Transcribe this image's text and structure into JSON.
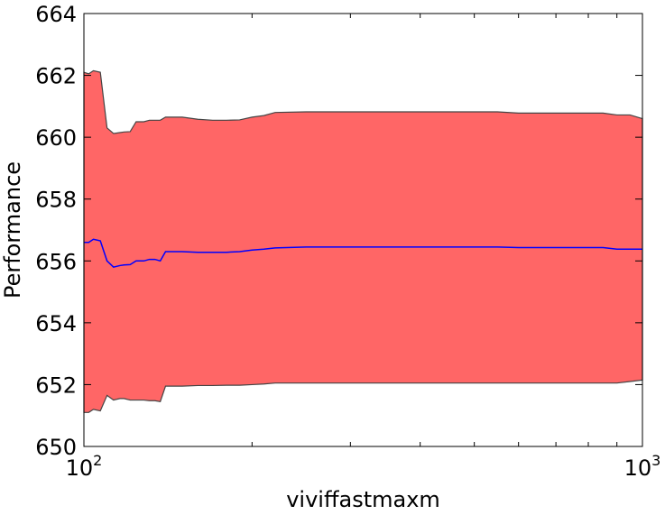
{
  "chart_data": {
    "type": "area",
    "xlabel": "viviffastmaxm",
    "ylabel": "Performance",
    "xscale": "log",
    "xlim": [
      100,
      1000
    ],
    "ylim": [
      650,
      664
    ],
    "grid": false,
    "x_ticks": [
      {
        "value": 100,
        "base": "10",
        "exp": "2"
      },
      {
        "value": 1000,
        "base": "10",
        "exp": "3"
      }
    ],
    "y_ticks": [
      "650",
      "652",
      "654",
      "656",
      "658",
      "660",
      "662",
      "664"
    ],
    "colors": {
      "band_fill": "#ff6666",
      "band_edge": "#444444",
      "mean_line": "#0000ff"
    },
    "series": [
      {
        "role": "mean",
        "x": [
          100,
          102,
          104,
          107,
          110,
          113,
          116,
          118,
          121,
          124,
          128,
          131,
          134,
          137,
          140,
          150,
          160,
          170,
          180,
          190,
          200,
          210,
          220,
          250,
          300,
          350,
          400,
          450,
          500,
          550,
          600,
          650,
          700,
          750,
          800,
          850,
          900,
          950,
          1000
        ],
        "y": [
          656.6,
          656.6,
          656.7,
          656.65,
          656.0,
          655.8,
          655.85,
          655.87,
          655.88,
          656.0,
          656.0,
          656.05,
          656.05,
          656.0,
          656.3,
          656.3,
          656.28,
          656.28,
          656.28,
          656.3,
          656.35,
          656.38,
          656.42,
          656.45,
          656.45,
          656.45,
          656.45,
          656.45,
          656.45,
          656.45,
          656.43,
          656.43,
          656.43,
          656.43,
          656.43,
          656.43,
          656.38,
          656.38,
          656.38
        ]
      },
      {
        "role": "upper",
        "x": [
          100,
          102,
          104,
          107,
          110,
          113,
          116,
          118,
          121,
          124,
          128,
          131,
          134,
          137,
          140,
          150,
          160,
          170,
          180,
          190,
          200,
          210,
          220,
          250,
          300,
          350,
          400,
          450,
          500,
          550,
          600,
          650,
          700,
          750,
          800,
          850,
          900,
          950,
          1000
        ],
        "y": [
          662.1,
          662.05,
          662.15,
          662.1,
          660.3,
          660.12,
          660.15,
          660.17,
          660.18,
          660.5,
          660.5,
          660.55,
          660.55,
          660.55,
          660.65,
          660.65,
          660.58,
          660.55,
          660.55,
          660.56,
          660.65,
          660.7,
          660.8,
          660.82,
          660.82,
          660.82,
          660.82,
          660.82,
          660.82,
          660.82,
          660.78,
          660.78,
          660.78,
          660.78,
          660.78,
          660.78,
          660.72,
          660.72,
          660.6
        ]
      },
      {
        "role": "lower",
        "x": [
          100,
          102,
          104,
          107,
          110,
          113,
          116,
          118,
          121,
          124,
          128,
          131,
          134,
          137,
          140,
          150,
          160,
          170,
          180,
          190,
          200,
          210,
          220,
          250,
          300,
          350,
          400,
          450,
          500,
          550,
          600,
          650,
          700,
          750,
          800,
          850,
          900,
          950,
          1000
        ],
        "y": [
          651.1,
          651.1,
          651.2,
          651.15,
          651.65,
          651.5,
          651.55,
          651.55,
          651.5,
          651.5,
          651.5,
          651.48,
          651.48,
          651.45,
          651.95,
          651.95,
          651.97,
          651.97,
          651.98,
          651.98,
          652.0,
          652.02,
          652.05,
          652.05,
          652.05,
          652.05,
          652.05,
          652.05,
          652.05,
          652.05,
          652.05,
          652.05,
          652.05,
          652.05,
          652.05,
          652.05,
          652.05,
          652.1,
          652.15
        ]
      }
    ]
  }
}
